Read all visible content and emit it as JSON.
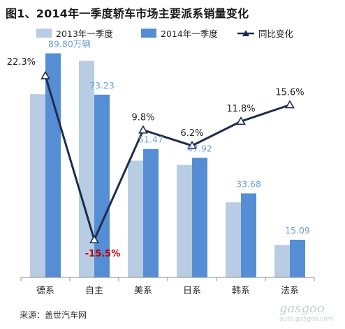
{
  "title": "图1、2014年一季度轿车市场主要派系销量变化",
  "source": "来源：盖世汽车网",
  "watermark": {
    "logo": "gasgoo",
    "url": "auto.gasgoo.com"
  },
  "colors": {
    "series_2013": "#b8cce4",
    "series_2014": "#558ed5",
    "change_line": "#1f2d4d",
    "value_label": "#6e9fd6",
    "neg_label": "#c00000",
    "axis": "#8c8c8c"
  },
  "chart_data": {
    "type": "bar",
    "categories": [
      "德系",
      "自主",
      "美系",
      "日系",
      "韩系",
      "法系"
    ],
    "series": [
      {
        "name": "2013年一季度",
        "values": [
          73.4,
          86.8,
          46.8,
          45.1,
          30.1,
          13.0
        ]
      },
      {
        "name": "2014年一季度",
        "values": [
          89.8,
          73.23,
          51.47,
          47.92,
          33.68,
          15.09
        ]
      }
    ],
    "value_labels_2014": [
      "89.80万辆",
      "73.23",
      "51.47",
      "47.92",
      "33.68",
      "15.09"
    ],
    "change": {
      "name": "同比变化",
      "type": "line",
      "values": [
        22.3,
        -15.5,
        9.8,
        6.2,
        11.8,
        15.6
      ],
      "labels": [
        "22.3%",
        "-15.5%",
        "9.8%",
        "6.2%",
        "11.8%",
        "15.6%"
      ]
    },
    "bar_ylim": [
      0,
      100
    ],
    "change_ylim": [
      -20,
      25
    ],
    "grid": false,
    "legend_position": "top"
  }
}
